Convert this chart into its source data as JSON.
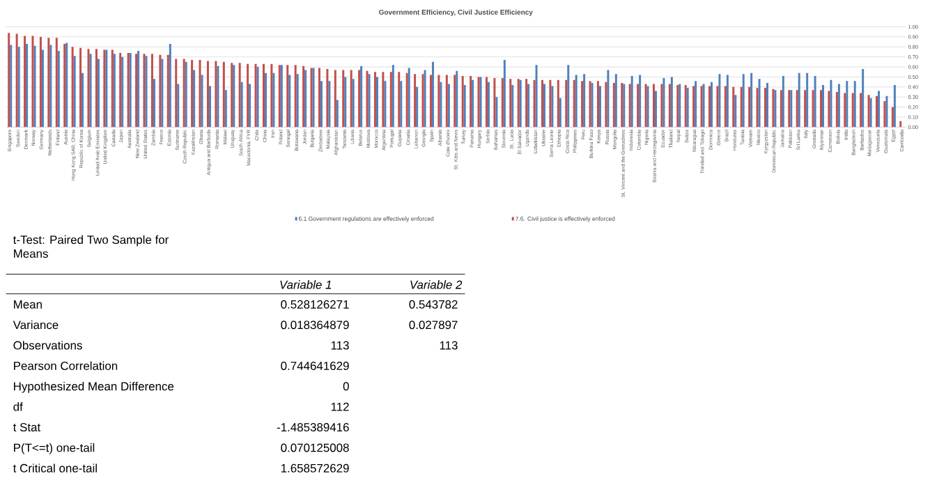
{
  "chart_data": [
    {
      "type": "bar",
      "title": "Government Efficiency, Civil Justice Efficiency",
      "categories": [
        "Singapore",
        "Sweden",
        "Denmark",
        "Norway",
        "Germany",
        "Netherlands",
        "Finland",
        "Austria",
        "Hong Kong SAR, China",
        "Republic of Korea",
        "Belgium",
        "United Arab Emirates",
        "United Kingdom",
        "Canada",
        "Japan",
        "Australia",
        "New Zealand",
        "United States",
        "Zambia",
        "France",
        "Estonia",
        "Suriname",
        "Czech Republic",
        "Kazakhstan",
        "Ghana",
        "Antigua and Barbuda",
        "Romania",
        "Malawi",
        "Uruguay",
        "South Africa",
        "Macedonia, FYR",
        "Chile",
        "China",
        "Iran",
        "Poland",
        "Senegal",
        "Botswana",
        "Jordan",
        "Bulgaria",
        "Zimbabwe",
        "Malaysia",
        "Afghanistan",
        "Tanzania",
        "Liberia",
        "Belarus",
        "Moldova",
        "Morocco",
        "Argentina",
        "Portugal",
        "Guyana",
        "Croatia",
        "Lebanon",
        "Georgia",
        "Spain",
        "Albania",
        "Cote d'Ivoire",
        "St. Kitts and Nevis",
        "Turkey",
        "Panama",
        "Hungary",
        "Serbia",
        "Bahamas",
        "Slovenia",
        "St. Lucia",
        "El Salvador",
        "Uganda",
        "Uzbekistan",
        "Ukraine",
        "Sierra Leone",
        "Ethiopia",
        "Costa Rica",
        "Philippines",
        "Peru",
        "Burkina Faso",
        "Kenya",
        "Russia",
        "Mongolia",
        "St. Vincent and the Grenadines",
        "Indonesia",
        "Colombia",
        "Nigeria",
        "Bosnia and Herzegovina",
        "Ecuador",
        "Thailand",
        "Nepal",
        "Belize",
        "Nicaragua",
        "Trinidad and Tobago",
        "Dominica",
        "Greece",
        "Brazil",
        "Honduras",
        "Tunisia",
        "Vietnam",
        "Mexico",
        "Kyrgyzstan",
        "Dominican Republic",
        "Jamaica",
        "Pakistan",
        "Sri Lanka",
        "Italy",
        "Grenada",
        "Myanmar",
        "Cameroon",
        "Bolivia",
        "India",
        "Bangladesh",
        "Barbados",
        "Madagascar",
        "Venezuela",
        "Guatemala",
        "Egypt",
        "Cambodia"
      ],
      "series": [
        {
          "name": "6.1 Government regulations are effectively enforced",
          "color": "#4f81bd",
          "values": [
            0.82,
            0.8,
            0.83,
            0.81,
            0.77,
            0.82,
            0.76,
            0.84,
            0.71,
            0.54,
            0.73,
            0.68,
            0.77,
            0.73,
            0.7,
            0.74,
            0.76,
            0.71,
            0.48,
            0.68,
            0.83,
            0.43,
            0.65,
            0.57,
            0.52,
            0.41,
            0.61,
            0.37,
            0.62,
            0.45,
            0.43,
            0.6,
            0.54,
            0.54,
            0.62,
            0.52,
            0.53,
            0.57,
            0.59,
            0.46,
            0.46,
            0.27,
            0.5,
            0.48,
            0.61,
            0.53,
            0.5,
            0.46,
            0.62,
            0.46,
            0.59,
            0.4,
            0.57,
            0.65,
            0.45,
            0.43,
            0.56,
            0.42,
            0.47,
            0.5,
            0.45,
            0.3,
            0.67,
            0.42,
            0.47,
            0.43,
            0.62,
            0.43,
            0.41,
            0.29,
            0.62,
            0.52,
            0.53,
            0.44,
            0.41,
            0.57,
            0.53,
            0.43,
            0.51,
            0.52,
            0.41,
            0.36,
            0.49,
            0.5,
            0.43,
            0.39,
            0.46,
            0.43,
            0.45,
            0.53,
            0.52,
            0.32,
            0.53,
            0.54,
            0.48,
            0.44,
            0.37,
            0.51,
            0.37,
            0.54,
            0.54,
            0.51,
            0.42,
            0.47,
            0.43,
            0.46,
            0.46,
            0.58,
            0.29,
            0.36,
            0.31,
            0.42,
            null
          ]
        },
        {
          "name": "7.6. Civil justice is effectively enforced",
          "color": "#c0504d",
          "values": [
            0.94,
            0.93,
            0.91,
            0.91,
            0.9,
            0.89,
            0.89,
            0.83,
            0.8,
            0.79,
            0.78,
            0.78,
            0.77,
            0.77,
            0.74,
            0.74,
            0.73,
            0.73,
            0.73,
            0.72,
            0.72,
            0.68,
            0.68,
            0.67,
            0.67,
            0.66,
            0.66,
            0.65,
            0.64,
            0.64,
            0.63,
            0.63,
            0.63,
            0.63,
            0.62,
            0.62,
            0.62,
            0.61,
            0.59,
            0.59,
            0.58,
            0.57,
            0.57,
            0.57,
            0.57,
            0.56,
            0.55,
            0.55,
            0.55,
            0.55,
            0.54,
            0.53,
            0.53,
            0.52,
            0.52,
            0.52,
            0.52,
            0.51,
            0.51,
            0.5,
            0.5,
            0.49,
            0.49,
            0.48,
            0.48,
            0.48,
            0.47,
            0.47,
            0.47,
            0.47,
            0.47,
            0.47,
            0.46,
            0.46,
            0.46,
            0.45,
            0.44,
            0.44,
            0.43,
            0.43,
            0.43,
            0.43,
            0.43,
            0.43,
            0.42,
            0.42,
            0.41,
            0.41,
            0.41,
            0.41,
            0.41,
            0.4,
            0.4,
            0.4,
            0.39,
            0.39,
            0.38,
            0.37,
            0.37,
            0.37,
            0.37,
            0.37,
            0.37,
            0.36,
            0.35,
            0.34,
            0.34,
            0.34,
            0.32,
            0.31,
            0.26,
            0.2,
            0.06
          ]
        }
      ],
      "ylim": [
        0,
        1
      ],
      "yticks": [
        {
          "value": 0,
          "label": "0.00"
        },
        {
          "value": 0.1,
          "label": "0.10"
        },
        {
          "value": 0.2,
          "label": "0.20"
        },
        {
          "value": 0.3,
          "label": "0.30"
        },
        {
          "value": 0.4,
          "label": "0.40"
        },
        {
          "value": 0.5,
          "label": "0.50"
        },
        {
          "value": 0.6,
          "label": "0.60"
        },
        {
          "value": 0.7,
          "label": "0.70"
        },
        {
          "value": 0.8,
          "label": "0.80"
        },
        {
          "value": 0.9,
          "label": "0.90"
        },
        {
          "value": 1,
          "label": "1.00"
        }
      ],
      "grid": "y",
      "legend": "bottom"
    },
    {
      "type": "other",
      "title": "t-Test: Paired Two Sample for Means",
      "categories": [
        "Mean",
        "Variance",
        "Observations",
        "Pearson Correlation",
        "Hypothesized Mean Difference",
        "df",
        "t Stat",
        "P(T<=t) one-tail",
        "t Critical one-tail"
      ],
      "series": [
        {
          "name": "Variable 1",
          "values": [
            0.528126271,
            0.018364879,
            113,
            0.744641629,
            0,
            112,
            -1.485389416,
            0.070125008,
            1.658572629
          ]
        },
        {
          "name": "Variable 2",
          "values": [
            0.543782,
            0.027897,
            113,
            null,
            null,
            null,
            null,
            null,
            null
          ]
        }
      ],
      "data_labels": true
    }
  ]
}
